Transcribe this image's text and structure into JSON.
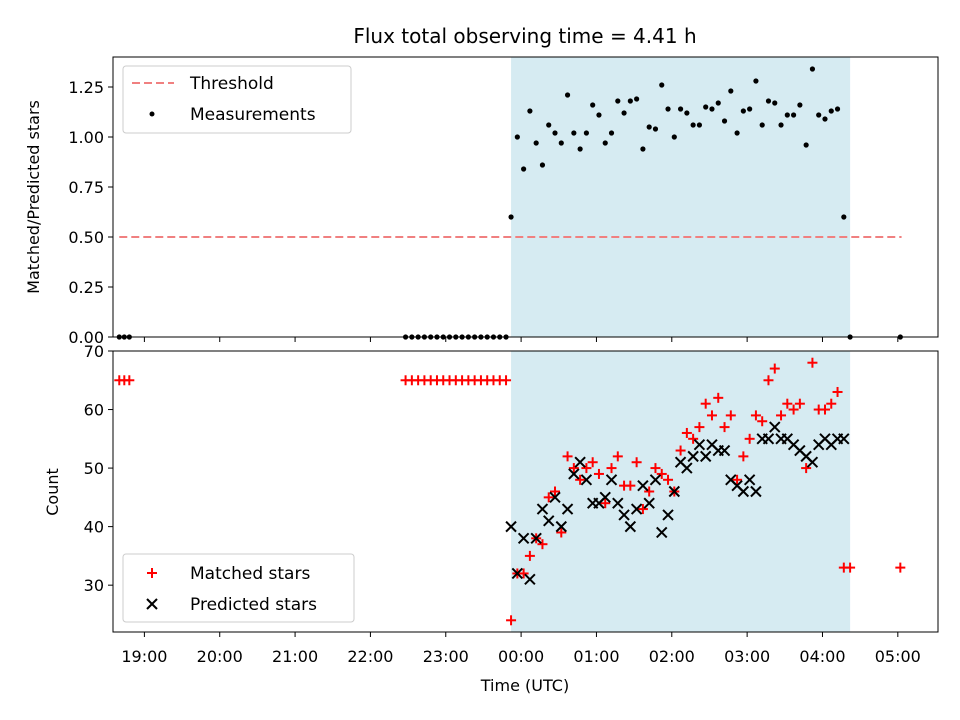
{
  "figure_title": "Flux total observing time = 4.41 h",
  "colors": {
    "threshold": "#f08080",
    "shade": "#add8e6",
    "matched": "#ff0000",
    "predicted": "#000000",
    "measurement": "#000000"
  },
  "chart_data": [
    {
      "type": "scatter",
      "panel": "top",
      "xlabel": "",
      "ylabel": "Matched/Predicted stars",
      "xlim": [
        "18:35",
        "05:32"
      ],
      "ylim": [
        0,
        1.4
      ],
      "yticks": [
        "0.00",
        "0.25",
        "0.50",
        "0.75",
        "1.00",
        "1.25"
      ],
      "shaded_span": [
        "23:52",
        "04:22"
      ],
      "legend_position": "upper left",
      "legend": {
        "threshold": "Threshold",
        "measurements": "Measurements"
      },
      "threshold": {
        "value": 0.5,
        "x_start": "18:40",
        "x_end": "05:03"
      },
      "series": [
        {
          "name": "Measurements",
          "points": [
            [
              "18:40",
              0
            ],
            [
              "18:44",
              0
            ],
            [
              "18:48",
              0
            ],
            [
              "22:28",
              0
            ],
            [
              "22:33",
              0
            ],
            [
              "22:38",
              0
            ],
            [
              "22:43",
              0
            ],
            [
              "22:48",
              0
            ],
            [
              "22:53",
              0
            ],
            [
              "22:58",
              0
            ],
            [
              "23:03",
              0
            ],
            [
              "23:08",
              0
            ],
            [
              "23:13",
              0
            ],
            [
              "23:18",
              0
            ],
            [
              "23:23",
              0
            ],
            [
              "23:28",
              0
            ],
            [
              "23:33",
              0
            ],
            [
              "23:38",
              0
            ],
            [
              "23:43",
              0
            ],
            [
              "23:48",
              0
            ],
            [
              "23:52",
              0.6
            ],
            [
              "23:57",
              1.0
            ],
            [
              "00:02",
              0.84
            ],
            [
              "00:07",
              1.13
            ],
            [
              "00:12",
              0.97
            ],
            [
              "00:17",
              0.86
            ],
            [
              "00:22",
              1.06
            ],
            [
              "00:27",
              1.02
            ],
            [
              "00:32",
              0.97
            ],
            [
              "00:37",
              1.21
            ],
            [
              "00:42",
              1.02
            ],
            [
              "00:47",
              0.94
            ],
            [
              "00:52",
              1.02
            ],
            [
              "00:57",
              1.16
            ],
            [
              "01:02",
              1.11
            ],
            [
              "01:07",
              0.97
            ],
            [
              "01:12",
              1.02
            ],
            [
              "01:17",
              1.18
            ],
            [
              "01:22",
              1.12
            ],
            [
              "01:27",
              1.18
            ],
            [
              "01:32",
              1.19
            ],
            [
              "01:37",
              0.94
            ],
            [
              "01:42",
              1.05
            ],
            [
              "01:47",
              1.04
            ],
            [
              "01:52",
              1.26
            ],
            [
              "01:57",
              1.14
            ],
            [
              "02:02",
              1.0
            ],
            [
              "02:07",
              1.14
            ],
            [
              "02:12",
              1.12
            ],
            [
              "02:17",
              1.06
            ],
            [
              "02:22",
              1.06
            ],
            [
              "02:27",
              1.15
            ],
            [
              "02:32",
              1.14
            ],
            [
              "02:37",
              1.17
            ],
            [
              "02:42",
              1.08
            ],
            [
              "02:47",
              1.23
            ],
            [
              "02:52",
              1.02
            ],
            [
              "02:57",
              1.13
            ],
            [
              "03:02",
              1.14
            ],
            [
              "03:07",
              1.28
            ],
            [
              "03:12",
              1.06
            ],
            [
              "03:17",
              1.18
            ],
            [
              "03:22",
              1.17
            ],
            [
              "03:27",
              1.06
            ],
            [
              "03:32",
              1.11
            ],
            [
              "03:37",
              1.11
            ],
            [
              "03:42",
              1.16
            ],
            [
              "03:47",
              0.96
            ],
            [
              "03:52",
              1.34
            ],
            [
              "03:57",
              1.11
            ],
            [
              "04:02",
              1.09
            ],
            [
              "04:07",
              1.13
            ],
            [
              "04:12",
              1.14
            ],
            [
              "04:17",
              0.6
            ],
            [
              "04:22",
              0
            ],
            [
              "05:02",
              0
            ]
          ]
        }
      ]
    },
    {
      "type": "scatter",
      "panel": "bottom",
      "xlabel": "Time (UTC)",
      "ylabel": "Count",
      "xlim": [
        "18:35",
        "05:32"
      ],
      "ylim": [
        22,
        70
      ],
      "yticks": [
        "30",
        "40",
        "50",
        "60",
        "70"
      ],
      "xticks": [
        "19:00",
        "20:00",
        "21:00",
        "22:00",
        "23:00",
        "00:00",
        "01:00",
        "02:00",
        "03:00",
        "04:00",
        "05:00"
      ],
      "shaded_span": [
        "23:52",
        "04:22"
      ],
      "legend_position": "lower left",
      "legend": {
        "matched": "Matched stars",
        "predicted": "Predicted stars"
      },
      "series": [
        {
          "name": "Matched stars",
          "points": [
            [
              "18:40",
              65
            ],
            [
              "18:44",
              65
            ],
            [
              "18:48",
              65
            ],
            [
              "22:28",
              65
            ],
            [
              "22:33",
              65
            ],
            [
              "22:38",
              65
            ],
            [
              "22:43",
              65
            ],
            [
              "22:48",
              65
            ],
            [
              "22:53",
              65
            ],
            [
              "22:58",
              65
            ],
            [
              "23:03",
              65
            ],
            [
              "23:08",
              65
            ],
            [
              "23:13",
              65
            ],
            [
              "23:18",
              65
            ],
            [
              "23:23",
              65
            ],
            [
              "23:28",
              65
            ],
            [
              "23:33",
              65
            ],
            [
              "23:38",
              65
            ],
            [
              "23:43",
              65
            ],
            [
              "23:48",
              65
            ],
            [
              "23:52",
              24
            ],
            [
              "23:57",
              32
            ],
            [
              "00:02",
              32
            ],
            [
              "00:07",
              35
            ],
            [
              "00:12",
              38
            ],
            [
              "00:17",
              37
            ],
            [
              "00:22",
              45
            ],
            [
              "00:27",
              46
            ],
            [
              "00:32",
              39
            ],
            [
              "00:37",
              52
            ],
            [
              "00:42",
              50
            ],
            [
              "00:47",
              48
            ],
            [
              "00:52",
              50
            ],
            [
              "00:57",
              51
            ],
            [
              "01:02",
              49
            ],
            [
              "01:07",
              44
            ],
            [
              "01:12",
              50
            ],
            [
              "01:17",
              52
            ],
            [
              "01:22",
              47
            ],
            [
              "01:27",
              47
            ],
            [
              "01:32",
              51
            ],
            [
              "01:37",
              43
            ],
            [
              "01:42",
              46
            ],
            [
              "01:47",
              50
            ],
            [
              "01:52",
              49
            ],
            [
              "01:57",
              48
            ],
            [
              "02:02",
              46
            ],
            [
              "02:07",
              53
            ],
            [
              "02:12",
              56
            ],
            [
              "02:17",
              55
            ],
            [
              "02:22",
              57
            ],
            [
              "02:27",
              61
            ],
            [
              "02:32",
              59
            ],
            [
              "02:37",
              62
            ],
            [
              "02:42",
              57
            ],
            [
              "02:47",
              59
            ],
            [
              "02:52",
              48
            ],
            [
              "02:57",
              52
            ],
            [
              "03:02",
              55
            ],
            [
              "03:07",
              59
            ],
            [
              "03:12",
              58
            ],
            [
              "03:17",
              65
            ],
            [
              "03:22",
              67
            ],
            [
              "03:27",
              59
            ],
            [
              "03:32",
              61
            ],
            [
              "03:37",
              60
            ],
            [
              "03:42",
              61
            ],
            [
              "03:47",
              50
            ],
            [
              "03:52",
              68
            ],
            [
              "03:57",
              60
            ],
            [
              "04:02",
              60
            ],
            [
              "04:07",
              61
            ],
            [
              "04:12",
              63
            ],
            [
              "04:17",
              33
            ],
            [
              "04:22",
              33
            ],
            [
              "05:02",
              33
            ]
          ]
        },
        {
          "name": "Predicted stars",
          "points": [
            [
              "23:52",
              40
            ],
            [
              "23:57",
              32
            ],
            [
              "00:02",
              38
            ],
            [
              "00:07",
              31
            ],
            [
              "00:12",
              38
            ],
            [
              "00:17",
              43
            ],
            [
              "00:22",
              41
            ],
            [
              "00:27",
              45
            ],
            [
              "00:32",
              40
            ],
            [
              "00:37",
              43
            ],
            [
              "00:42",
              49
            ],
            [
              "00:47",
              51
            ],
            [
              "00:52",
              48
            ],
            [
              "00:57",
              44
            ],
            [
              "01:02",
              44
            ],
            [
              "01:07",
              45
            ],
            [
              "01:12",
              48
            ],
            [
              "01:17",
              44
            ],
            [
              "01:22",
              42
            ],
            [
              "01:27",
              40
            ],
            [
              "01:32",
              43
            ],
            [
              "01:37",
              47
            ],
            [
              "01:42",
              44
            ],
            [
              "01:47",
              48
            ],
            [
              "01:52",
              39
            ],
            [
              "01:57",
              42
            ],
            [
              "02:02",
              46
            ],
            [
              "02:07",
              51
            ],
            [
              "02:12",
              50
            ],
            [
              "02:17",
              52
            ],
            [
              "02:22",
              54
            ],
            [
              "02:27",
              52
            ],
            [
              "02:32",
              54
            ],
            [
              "02:37",
              53
            ],
            [
              "02:42",
              53
            ],
            [
              "02:47",
              48
            ],
            [
              "02:52",
              47
            ],
            [
              "02:57",
              46
            ],
            [
              "03:02",
              48
            ],
            [
              "03:07",
              46
            ],
            [
              "03:12",
              55
            ],
            [
              "03:17",
              55
            ],
            [
              "03:22",
              57
            ],
            [
              "03:27",
              55
            ],
            [
              "03:32",
              55
            ],
            [
              "03:37",
              54
            ],
            [
              "03:42",
              53
            ],
            [
              "03:47",
              52
            ],
            [
              "03:52",
              51
            ],
            [
              "03:57",
              54
            ],
            [
              "04:02",
              55
            ],
            [
              "04:07",
              54
            ],
            [
              "04:12",
              55
            ],
            [
              "04:17",
              55
            ]
          ]
        }
      ]
    }
  ]
}
